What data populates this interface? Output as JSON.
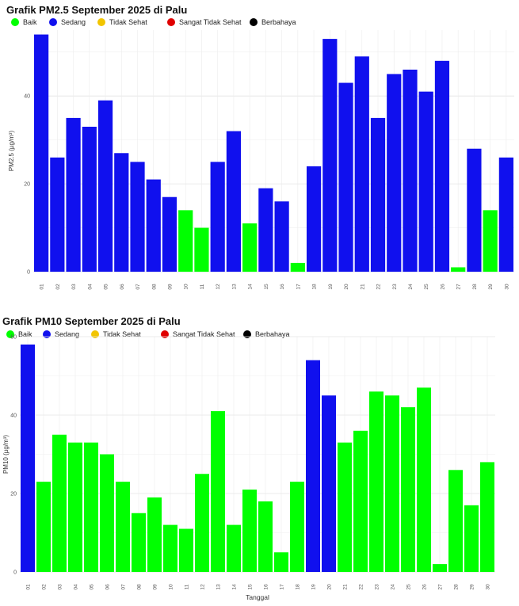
{
  "legend": [
    {
      "label": "Baik",
      "color": "#00ff00"
    },
    {
      "label": "Sedang",
      "color": "#1010ee"
    },
    {
      "label": "Tidak Sehat",
      "color": "#f2c500"
    },
    {
      "label": "Sangat Tidak Sehat",
      "color": "#e00000"
    },
    {
      "label": "Berbahaya",
      "color": "#000000"
    }
  ],
  "chart_data": [
    {
      "type": "bar",
      "title": "Grafik PM2.5 September 2025 di Palu",
      "xlabel": "",
      "ylabel": "PM2.5 (µg/m³)",
      "ylim": [
        0,
        55
      ],
      "yticks": [
        0,
        20,
        40
      ],
      "categories": [
        "01",
        "02",
        "03",
        "04",
        "05",
        "06",
        "07",
        "08",
        "09",
        "10",
        "11",
        "12",
        "13",
        "14",
        "15",
        "16",
        "17",
        "18",
        "19",
        "20",
        "21",
        "22",
        "23",
        "24",
        "25",
        "26",
        "27",
        "28",
        "29",
        "30"
      ],
      "values": [
        54,
        26,
        35,
        33,
        39,
        27,
        25,
        21,
        17,
        14,
        10,
        25,
        32,
        11,
        19,
        16,
        2,
        24,
        53,
        43,
        49,
        35,
        45,
        46,
        41,
        48,
        1,
        28,
        14,
        26
      ],
      "categories_quality": [
        "Sedang",
        "Sedang",
        "Sedang",
        "Sedang",
        "Sedang",
        "Sedang",
        "Sedang",
        "Sedang",
        "Sedang",
        "Baik",
        "Baik",
        "Sedang",
        "Sedang",
        "Baik",
        "Sedang",
        "Sedang",
        "Baik",
        "Sedang",
        "Sedang",
        "Sedang",
        "Sedang",
        "Sedang",
        "Sedang",
        "Sedang",
        "Sedang",
        "Sedang",
        "Baik",
        "Sedang",
        "Baik",
        "Sedang"
      ]
    },
    {
      "type": "bar",
      "title": "Grafik PM10 September 2025 di Palu",
      "xlabel": "Tanggal",
      "ylabel": "PM10 (µg/m³)",
      "ylim": [
        0,
        60
      ],
      "yticks": [
        0,
        20,
        40,
        60
      ],
      "categories": [
        "01",
        "02",
        "03",
        "04",
        "05",
        "06",
        "07",
        "08",
        "09",
        "10",
        "11",
        "12",
        "13",
        "14",
        "15",
        "16",
        "17",
        "18",
        "19",
        "20",
        "21",
        "22",
        "23",
        "24",
        "25",
        "26",
        "27",
        "28",
        "29",
        "30"
      ],
      "values": [
        58,
        23,
        35,
        33,
        33,
        30,
        23,
        15,
        19,
        12,
        11,
        25,
        41,
        12,
        21,
        18,
        5,
        23,
        54,
        45,
        33,
        36,
        46,
        45,
        42,
        47,
        2,
        26,
        17,
        28
      ],
      "categories_quality": [
        "Sedang",
        "Baik",
        "Baik",
        "Baik",
        "Baik",
        "Baik",
        "Baik",
        "Baik",
        "Baik",
        "Baik",
        "Baik",
        "Baik",
        "Baik",
        "Baik",
        "Baik",
        "Baik",
        "Baik",
        "Baik",
        "Sedang",
        "Sedang",
        "Baik",
        "Baik",
        "Baik",
        "Baik",
        "Baik",
        "Baik",
        "Baik",
        "Baik",
        "Baik",
        "Baik"
      ]
    }
  ]
}
